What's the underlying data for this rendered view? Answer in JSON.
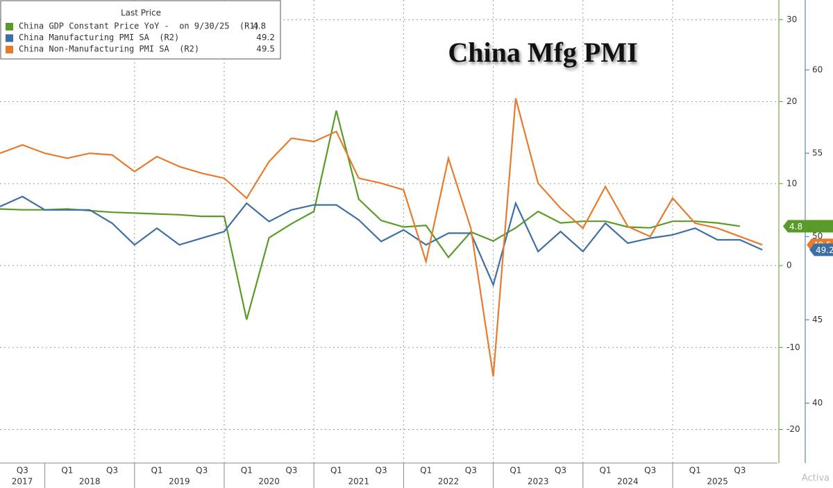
{
  "chart_data": {
    "type": "line",
    "title": "China Mfg PMI",
    "legend_header": "Last Price",
    "categories": [
      null,
      "Q3",
      null,
      "Q1",
      null,
      "Q3",
      null,
      "Q1",
      null,
      "Q3",
      null,
      "Q1",
      null,
      "Q3",
      null,
      "Q1",
      null,
      "Q3",
      null,
      "Q1",
      null,
      "Q3",
      null,
      "Q1",
      null,
      "Q3",
      null,
      "Q1",
      null,
      "Q3",
      null,
      "Q1",
      null,
      "Q3",
      null
    ],
    "years": [
      "2017",
      "2018",
      "2019",
      "2020",
      "2021",
      "2022",
      "2023",
      "2024",
      "2025"
    ],
    "series": [
      {
        "name": "China GDP Constant Price YoY -  on 9/30/25  (R1)",
        "color": "#5a9a28",
        "axis": "y",
        "values": [
          6.9,
          6.8,
          6.8,
          6.9,
          6.7,
          6.5,
          6.4,
          6.3,
          6.2,
          6.0,
          6.0,
          -6.6,
          3.4,
          5.1,
          6.6,
          18.9,
          8.1,
          5.5,
          4.7,
          4.9,
          1.0,
          4.1,
          3.0,
          4.6,
          6.6,
          5.2,
          5.4,
          5.4,
          4.7,
          4.6,
          5.4,
          5.4,
          5.2,
          4.8,
          null
        ]
      },
      {
        "name": "China Manufacturing PMI SA  (R2)",
        "color": "#3d6fa5",
        "axis": "y2",
        "values": [
          51.8,
          52.4,
          51.6,
          51.6,
          51.6,
          50.8,
          49.5,
          50.5,
          49.5,
          49.9,
          50.3,
          52.0,
          50.9,
          51.6,
          51.9,
          51.9,
          51.0,
          49.7,
          50.4,
          49.5,
          50.2,
          50.2,
          47.1,
          52.0,
          49.1,
          50.3,
          49.1,
          50.8,
          49.6,
          49.9,
          50.1,
          50.5,
          49.8,
          49.8,
          49.2
        ]
      },
      {
        "name": "China Non-Manufacturing PMI SA  (R2)",
        "color": "#e87a2c",
        "axis": "y2",
        "values": [
          55.0,
          55.5,
          55.0,
          54.7,
          55.0,
          54.9,
          53.9,
          54.8,
          54.2,
          53.8,
          53.5,
          52.3,
          54.5,
          55.9,
          55.7,
          56.3,
          53.5,
          53.2,
          52.8,
          48.5,
          54.7,
          50.5,
          41.6,
          58.3,
          53.2,
          51.7,
          50.5,
          53.0,
          50.6,
          50.0,
          52.3,
          50.8,
          50.5,
          50.0,
          49.5
        ]
      }
    ],
    "ylim": [
      -24.1,
      32.4
    ],
    "yticks": [
      -20,
      -10,
      0,
      10,
      20,
      30
    ],
    "y2lim": [
      36.4,
      64.2
    ],
    "y2ticks": [
      40,
      45,
      50,
      55,
      60
    ],
    "grid": true,
    "watermark": "Activa"
  }
}
